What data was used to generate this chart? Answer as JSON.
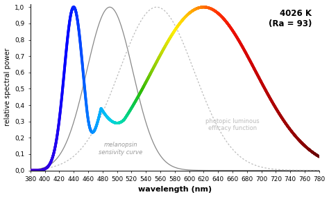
{
  "title": "4026 K\n(Ra = 93)",
  "xlabel": "wavelength (nm)",
  "ylabel": "relative spectral power",
  "xlim": [
    380,
    780
  ],
  "ylim": [
    0.0,
    1.02
  ],
  "xticks": [
    380,
    400,
    420,
    440,
    460,
    480,
    500,
    520,
    540,
    560,
    580,
    600,
    620,
    640,
    660,
    680,
    700,
    720,
    740,
    760,
    780
  ],
  "yticks": [
    0.0,
    0.1,
    0.2,
    0.3,
    0.4,
    0.5,
    0.6,
    0.7,
    0.8,
    0.9,
    1.0
  ],
  "ytick_labels": [
    "0,0",
    "0,1",
    "0,2",
    "0,3",
    "0,4",
    "0,5",
    "0,6",
    "0,7",
    "0,8",
    "0,9",
    "1,0"
  ],
  "melanopsin_label": "melanopsin\nsensivity curve",
  "photopic_label": "photopic luminous\nefficacy function",
  "background_color": "#ffffff",
  "spd_colors_wavelengths": [
    380,
    400,
    415,
    430,
    445,
    460,
    475,
    490,
    505,
    520,
    535,
    550,
    565,
    580,
    595,
    610,
    625,
    640,
    660,
    690,
    720,
    760,
    780
  ],
  "spd_colors_hex": [
    "#5500CC",
    "#3300DD",
    "#2200EE",
    "#0000FF",
    "#0033FF",
    "#0077FF",
    "#00AAFF",
    "#00CCEE",
    "#00DDBB",
    "#00CC66",
    "#33BB00",
    "#88CC00",
    "#CCDD00",
    "#FFEE00",
    "#FFCC00",
    "#FF9900",
    "#FF6600",
    "#FF3300",
    "#EE1100",
    "#CC0000",
    "#AA0000",
    "#880000",
    "#660000"
  ]
}
